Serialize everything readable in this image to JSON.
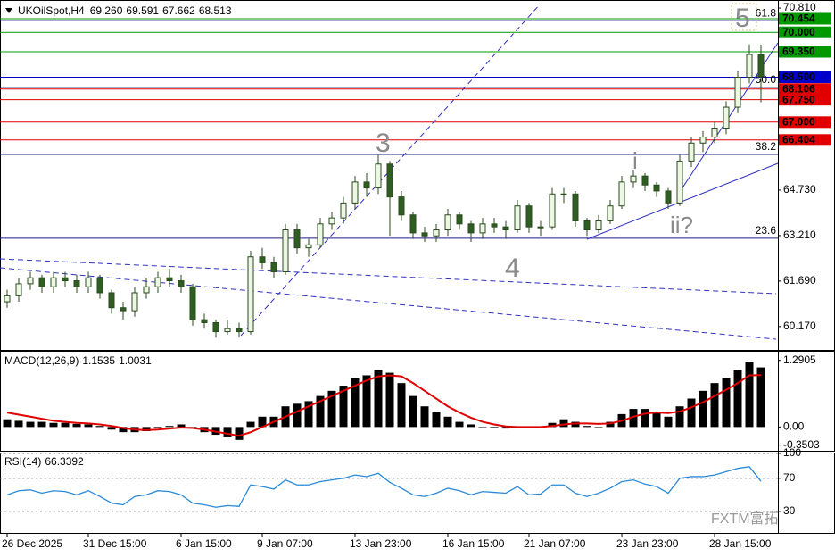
{
  "chart_data": [
    {
      "type": "candlestick",
      "title": "UKOilSpot,H4",
      "ohlc_value_labels": [
        "69.260",
        "69.591",
        "67.662",
        "68.513"
      ],
      "categories": [
        "26 Dec 2025",
        null,
        null,
        null,
        null,
        null,
        null,
        "31 Dec 15:00",
        null,
        null,
        null,
        null,
        null,
        null,
        null,
        "6 Jan 15:00",
        null,
        null,
        null,
        null,
        null,
        null,
        "9 Jan 07:00",
        null,
        null,
        null,
        null,
        null,
        null,
        null,
        "13 Jan 23:00",
        null,
        null,
        null,
        null,
        null,
        null,
        null,
        "16 Jan 15:00",
        null,
        null,
        null,
        null,
        null,
        null,
        "21 Jan 07:00",
        null,
        null,
        null,
        null,
        null,
        null,
        null,
        "23 Jan 23:00",
        null,
        null,
        null,
        null,
        null,
        null,
        null,
        "28 Jan 15:00",
        null,
        null,
        null,
        null
      ],
      "candles": [
        [
          61.0,
          61.4,
          60.8,
          61.2
        ],
        [
          61.2,
          61.8,
          61.0,
          61.6
        ],
        [
          61.6,
          62.0,
          61.4,
          61.8
        ],
        [
          61.8,
          61.9,
          61.3,
          61.5
        ],
        [
          61.5,
          62.0,
          61.3,
          61.8
        ],
        [
          61.8,
          62.0,
          61.5,
          61.7
        ],
        [
          61.7,
          61.9,
          61.3,
          61.5
        ],
        [
          61.5,
          62.0,
          61.3,
          61.8
        ],
        [
          61.8,
          61.9,
          61.1,
          61.3
        ],
        [
          61.3,
          61.4,
          60.6,
          60.8
        ],
        [
          60.8,
          61.0,
          60.4,
          60.7
        ],
        [
          60.7,
          61.5,
          60.5,
          61.3
        ],
        [
          61.3,
          61.8,
          61.1,
          61.5
        ],
        [
          61.5,
          62.0,
          61.3,
          61.8
        ],
        [
          61.8,
          62.1,
          61.5,
          61.7
        ],
        [
          61.7,
          61.9,
          61.3,
          61.5
        ],
        [
          61.5,
          61.6,
          60.2,
          60.4
        ],
        [
          60.4,
          60.6,
          60.1,
          60.3
        ],
        [
          60.3,
          60.4,
          59.8,
          60.0
        ],
        [
          60.0,
          60.4,
          59.9,
          60.1
        ],
        [
          60.1,
          60.3,
          59.8,
          60.0
        ],
        [
          60.0,
          62.7,
          59.9,
          62.5
        ],
        [
          62.5,
          62.8,
          62.1,
          62.3
        ],
        [
          62.3,
          62.5,
          61.8,
          62.0
        ],
        [
          62.0,
          63.6,
          61.9,
          63.4
        ],
        [
          63.4,
          63.6,
          62.6,
          62.8
        ],
        [
          62.8,
          63.1,
          62.5,
          62.9
        ],
        [
          62.9,
          63.8,
          62.8,
          63.6
        ],
        [
          63.6,
          64.0,
          63.4,
          63.8
        ],
        [
          63.8,
          64.5,
          63.6,
          64.3
        ],
        [
          64.3,
          65.2,
          64.1,
          65.0
        ],
        [
          65.0,
          65.3,
          64.5,
          64.8
        ],
        [
          64.8,
          65.9,
          64.6,
          65.6
        ],
        [
          65.6,
          65.7,
          63.2,
          64.5
        ],
        [
          64.5,
          64.7,
          63.7,
          63.9
        ],
        [
          63.9,
          64.0,
          63.1,
          63.3
        ],
        [
          63.3,
          63.5,
          63.0,
          63.2
        ],
        [
          63.2,
          63.6,
          63.0,
          63.4
        ],
        [
          63.4,
          64.1,
          63.2,
          63.9
        ],
        [
          63.9,
          64.0,
          63.4,
          63.6
        ],
        [
          63.6,
          63.7,
          63.0,
          63.3
        ],
        [
          63.3,
          63.8,
          63.1,
          63.6
        ],
        [
          63.6,
          63.8,
          63.3,
          63.5
        ],
        [
          63.5,
          63.7,
          63.1,
          63.4
        ],
        [
          63.4,
          64.4,
          63.3,
          64.2
        ],
        [
          64.2,
          64.3,
          63.3,
          63.5
        ],
        [
          63.5,
          63.7,
          63.2,
          63.5
        ],
        [
          63.5,
          64.8,
          63.4,
          64.6
        ],
        [
          64.6,
          64.8,
          64.3,
          64.6
        ],
        [
          64.6,
          64.7,
          63.5,
          63.7
        ],
        [
          63.7,
          63.8,
          63.2,
          63.4
        ],
        [
          63.4,
          63.9,
          63.3,
          63.7
        ],
        [
          63.7,
          64.4,
          63.6,
          64.2
        ],
        [
          64.2,
          65.2,
          64.1,
          65.0
        ],
        [
          65.0,
          65.4,
          64.8,
          65.2
        ],
        [
          65.2,
          65.3,
          64.7,
          64.9
        ],
        [
          64.9,
          65.0,
          64.5,
          64.7
        ],
        [
          64.7,
          64.8,
          64.1,
          64.3
        ],
        [
          64.3,
          65.9,
          64.2,
          65.7
        ],
        [
          65.7,
          66.5,
          65.5,
          66.3
        ],
        [
          66.3,
          66.7,
          66.0,
          66.5
        ],
        [
          66.5,
          67.0,
          66.3,
          66.8
        ],
        [
          66.8,
          67.7,
          66.6,
          67.5
        ],
        [
          67.5,
          68.7,
          67.3,
          68.5
        ],
        [
          68.5,
          69.6,
          68.3,
          69.26
        ],
        [
          69.26,
          69.591,
          67.662,
          68.513
        ]
      ],
      "up_color": "#eef7e6",
      "down_color": "#2f5e22",
      "wick_color": "#2a4a1e",
      "ylim": [
        59.45,
        71.02
      ],
      "yticks": [
        {
          "value": 70.81,
          "label": "70.810"
        },
        {
          "value": 64.73,
          "label": "64.730"
        },
        {
          "value": 63.21,
          "label": "63.210"
        },
        {
          "value": 61.69,
          "label": "61.690"
        },
        {
          "value": 60.17,
          "label": "60.170"
        }
      ],
      "levels": [
        {
          "value": 70.454,
          "label": "70.454",
          "color": "#009a00"
        },
        {
          "value": 70,
          "label": "70.000",
          "color": "#009a00"
        },
        {
          "value": 69.35,
          "label": "69.350",
          "color": "#009a00"
        },
        {
          "value": 68.5,
          "label": "68.500",
          "color": "#0000c8"
        },
        {
          "value": 68.106,
          "label": "68.106",
          "color": "#e00000"
        },
        {
          "value": 67.75,
          "label": "67.750",
          "color": "#e00000"
        },
        {
          "value": 67,
          "label": "67.000",
          "color": "#e00000"
        },
        {
          "value": 66.404,
          "label": "66.404",
          "color": "#e00000"
        }
      ],
      "fib_color": "#1c1c80",
      "fib_levels": [
        {
          "label": "61.8",
          "value": 70.39
        },
        {
          "label": "50.0",
          "value": 68.16
        },
        {
          "label": "38.2",
          "value": 65.92
        },
        {
          "label": "23.6",
          "value": 63.12
        }
      ],
      "annotations": [
        "5",
        "3",
        "4",
        "i",
        "ii?"
      ],
      "watermark": "FXTM富拓"
    },
    {
      "type": "macd",
      "title": "MACD(12,26,9)",
      "title_values": [
        "1.1535",
        "1.0031"
      ],
      "histogram": {
        "color": "#000000",
        "values": [
          0.15,
          0.12,
          0.1,
          0.1,
          0.08,
          0.08,
          0.06,
          0.05,
          0.02,
          -0.05,
          -0.1,
          -0.1,
          -0.08,
          -0.02,
          0.02,
          0.05,
          -0.02,
          -0.1,
          -0.15,
          -0.2,
          -0.25,
          0.1,
          0.2,
          0.2,
          0.4,
          0.45,
          0.5,
          0.6,
          0.7,
          0.8,
          0.95,
          1.0,
          1.1,
          1.05,
          0.85,
          0.6,
          0.4,
          0.3,
          0.2,
          0.1,
          0.05,
          0.0,
          -0.02,
          -0.03,
          0.0,
          0.0,
          -0.02,
          0.08,
          0.15,
          0.1,
          0.02,
          0.0,
          0.1,
          0.25,
          0.35,
          0.35,
          0.3,
          0.2,
          0.4,
          0.55,
          0.7,
          0.85,
          0.95,
          1.1,
          1.25,
          1.1535
        ]
      },
      "signal": {
        "color": "#e00000",
        "values": [
          0.28,
          0.24,
          0.2,
          0.16,
          0.12,
          0.1,
          0.08,
          0.07,
          0.05,
          0.02,
          -0.02,
          -0.05,
          -0.06,
          -0.05,
          -0.03,
          -0.01,
          -0.02,
          -0.05,
          -0.09,
          -0.13,
          -0.17,
          -0.1,
          0.0,
          0.1,
          0.2,
          0.3,
          0.4,
          0.5,
          0.6,
          0.7,
          0.8,
          0.9,
          0.98,
          1.0,
          0.98,
          0.85,
          0.7,
          0.55,
          0.4,
          0.28,
          0.18,
          0.1,
          0.05,
          0.01,
          0.0,
          0.0,
          0.0,
          0.02,
          0.05,
          0.07,
          0.07,
          0.06,
          0.07,
          0.12,
          0.2,
          0.26,
          0.28,
          0.27,
          0.3,
          0.38,
          0.48,
          0.6,
          0.72,
          0.85,
          1.0,
          1.0031
        ]
      },
      "ylim": [
        -0.46,
        1.44
      ],
      "yticks": [
        1.2905,
        {
          "value": 0,
          "label": "0.00"
        },
        -0.3503
      ]
    },
    {
      "type": "line",
      "title": "RSI(14)",
      "title_values": [
        "66.3392"
      ],
      "color": "#2a8ad8",
      "values": [
        50,
        55,
        56,
        52,
        55,
        54,
        50,
        55,
        48,
        40,
        38,
        48,
        50,
        55,
        54,
        50,
        40,
        38,
        35,
        37,
        36,
        62,
        60,
        57,
        68,
        62,
        62,
        66,
        68,
        70,
        74,
        72,
        76,
        65,
        58,
        50,
        48,
        52,
        58,
        55,
        50,
        54,
        53,
        52,
        60,
        50,
        51,
        62,
        62,
        52,
        48,
        52,
        58,
        66,
        68,
        63,
        60,
        52,
        70,
        72,
        72,
        74,
        78,
        82,
        84,
        66.3392
      ],
      "ylim": [
        4,
        100
      ],
      "yticks": [
        100,
        70,
        30
      ],
      "grid": true
    }
  ]
}
